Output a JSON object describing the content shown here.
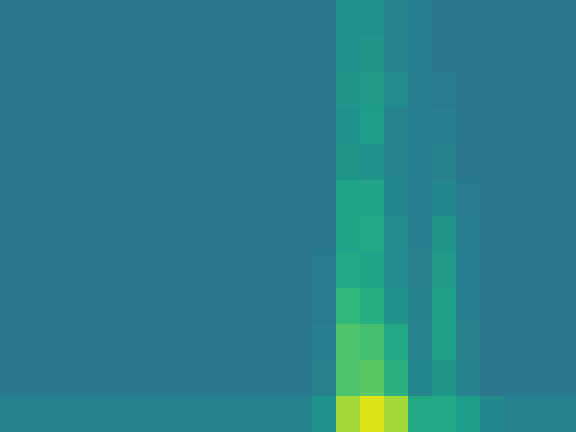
{
  "chart_data": {
    "type": "heatmap",
    "color": "viridis",
    "tick_labels": false,
    "zlim": [
      0,
      1
    ],
    "cells": [
      [
        0.4,
        0.4,
        0.4,
        0.4,
        0.4,
        0.4,
        0.4,
        0.4,
        0.4,
        0.4,
        0.4,
        0.4,
        0.4,
        0.4,
        0.5,
        0.5,
        0.45,
        0.42,
        0.4,
        0.4,
        0.4,
        0.4,
        0.4,
        0.4
      ],
      [
        0.4,
        0.4,
        0.4,
        0.4,
        0.4,
        0.4,
        0.4,
        0.4,
        0.4,
        0.4,
        0.4,
        0.4,
        0.4,
        0.4,
        0.5,
        0.52,
        0.45,
        0.42,
        0.4,
        0.4,
        0.4,
        0.4,
        0.4,
        0.4
      ],
      [
        0.4,
        0.4,
        0.4,
        0.4,
        0.4,
        0.4,
        0.4,
        0.4,
        0.4,
        0.4,
        0.4,
        0.4,
        0.4,
        0.4,
        0.52,
        0.54,
        0.47,
        0.42,
        0.41,
        0.4,
        0.4,
        0.4,
        0.4,
        0.4
      ],
      [
        0.4,
        0.4,
        0.4,
        0.4,
        0.4,
        0.4,
        0.4,
        0.4,
        0.4,
        0.4,
        0.4,
        0.4,
        0.4,
        0.4,
        0.5,
        0.55,
        0.45,
        0.42,
        0.42,
        0.4,
        0.4,
        0.4,
        0.4,
        0.4
      ],
      [
        0.4,
        0.4,
        0.4,
        0.4,
        0.4,
        0.4,
        0.4,
        0.4,
        0.4,
        0.4,
        0.4,
        0.4,
        0.4,
        0.4,
        0.52,
        0.5,
        0.45,
        0.42,
        0.44,
        0.4,
        0.4,
        0.4,
        0.4,
        0.4
      ],
      [
        0.4,
        0.4,
        0.4,
        0.4,
        0.4,
        0.4,
        0.4,
        0.4,
        0.4,
        0.4,
        0.4,
        0.4,
        0.4,
        0.4,
        0.58,
        0.58,
        0.46,
        0.42,
        0.46,
        0.41,
        0.4,
        0.4,
        0.4,
        0.4
      ],
      [
        0.4,
        0.4,
        0.4,
        0.4,
        0.4,
        0.4,
        0.4,
        0.4,
        0.4,
        0.4,
        0.4,
        0.4,
        0.4,
        0.4,
        0.58,
        0.6,
        0.48,
        0.42,
        0.52,
        0.42,
        0.4,
        0.4,
        0.4,
        0.4
      ],
      [
        0.4,
        0.4,
        0.4,
        0.4,
        0.4,
        0.4,
        0.4,
        0.4,
        0.4,
        0.4,
        0.4,
        0.4,
        0.4,
        0.41,
        0.6,
        0.58,
        0.48,
        0.43,
        0.54,
        0.42,
        0.4,
        0.4,
        0.4,
        0.4
      ],
      [
        0.4,
        0.4,
        0.4,
        0.4,
        0.4,
        0.4,
        0.4,
        0.4,
        0.4,
        0.4,
        0.4,
        0.4,
        0.4,
        0.41,
        0.66,
        0.62,
        0.5,
        0.44,
        0.56,
        0.42,
        0.4,
        0.4,
        0.4,
        0.4
      ],
      [
        0.4,
        0.4,
        0.4,
        0.4,
        0.4,
        0.4,
        0.4,
        0.4,
        0.4,
        0.4,
        0.4,
        0.4,
        0.4,
        0.42,
        0.72,
        0.7,
        0.6,
        0.45,
        0.56,
        0.43,
        0.4,
        0.4,
        0.4,
        0.4
      ],
      [
        0.4,
        0.4,
        0.4,
        0.4,
        0.4,
        0.4,
        0.4,
        0.4,
        0.4,
        0.4,
        0.4,
        0.4,
        0.4,
        0.43,
        0.72,
        0.74,
        0.64,
        0.46,
        0.52,
        0.44,
        0.4,
        0.4,
        0.4,
        0.4
      ],
      [
        0.44,
        0.44,
        0.44,
        0.44,
        0.44,
        0.44,
        0.44,
        0.44,
        0.44,
        0.44,
        0.44,
        0.44,
        0.44,
        0.5,
        0.86,
        0.95,
        0.86,
        0.6,
        0.6,
        0.55,
        0.46,
        0.44,
        0.44,
        0.44
      ]
    ]
  }
}
